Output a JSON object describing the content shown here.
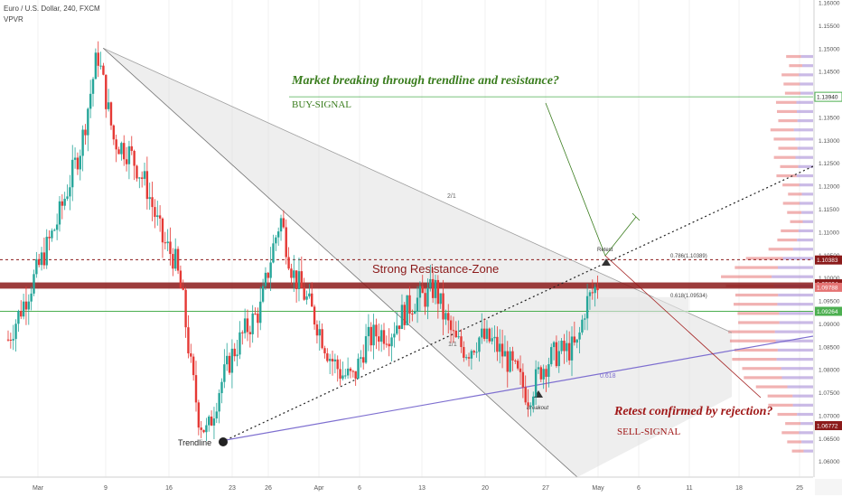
{
  "header": {
    "symbol_line": "Euro / U.S. Dollar, 240, FXCM",
    "indicator": "VPVR"
  },
  "annotations": {
    "buy_title": "Market breaking through trendline and resistance?",
    "buy_signal": "BUY-SIGNAL",
    "sell_title": "Retest confirmed by rejection?",
    "sell_signal": "SELL-SIGNAL",
    "resistance_zone": "Strong Resistance-Zone",
    "trendline": "Trendline",
    "breakout": "Breakout",
    "retest": "Retest",
    "fan_2_1": "2/1",
    "fan_1_1": "1/1",
    "fib_618": "0.618",
    "fib_786": "0.786(1.10389)",
    "fib_618_price": "0.618(1.09534)"
  },
  "colors": {
    "bull": "#26a69a",
    "bear": "#e53935",
    "resistance": "#8b1a1a",
    "green_line": "#4caf50",
    "buy_text": "#3a7d1e",
    "sell_text": "#a01818",
    "blue_line": "#7e6fd0",
    "fan_fill": "#d9d9d9"
  },
  "chart_data": {
    "type": "candlestick",
    "symbol": "Euro / U.S. Dollar",
    "timeframe": "240",
    "source": "FXCM",
    "y_range": [
      1.0565,
      1.1605
    ],
    "y_ticks": [
      1.06,
      1.065,
      1.07,
      1.075,
      1.08,
      1.085,
      1.09,
      1.095,
      1.1,
      1.105,
      1.11,
      1.115,
      1.12,
      1.125,
      1.13,
      1.135,
      1.14,
      1.145,
      1.15,
      1.155,
      1.16
    ],
    "x_ticks": [
      "Mar",
      "9",
      "16",
      "23",
      "26",
      "Apr",
      "6",
      "13",
      "20",
      "27",
      "May",
      "6",
      "11",
      "18",
      "25"
    ],
    "price_tags": [
      {
        "label": "1.13940",
        "value": 1.1394,
        "style": "outline"
      },
      {
        "label": "1.10383",
        "value": 1.10383,
        "style": "solid"
      },
      {
        "label": "1.09864",
        "value": 1.09864,
        "style": "solid"
      },
      {
        "label": "1.09788",
        "value": 1.09788,
        "style": "light"
      },
      {
        "label": "1.09264",
        "value": 1.09264,
        "style": "solid"
      },
      {
        "label": "1.06772",
        "value": 1.06772,
        "style": "solid"
      }
    ],
    "levels": {
      "resistance_upper": 1.09864,
      "resistance_lower": 1.09788,
      "fib_786": 1.10389,
      "fib_618": 1.09534,
      "support_green": 1.09264,
      "buy_line": 1.1394
    },
    "key_points": [
      {
        "x": 0.01,
        "close": 1.0865
      },
      {
        "x": 0.04,
        "close": 1.099
      },
      {
        "x": 0.07,
        "close": 1.112
      },
      {
        "x": 0.1,
        "close": 1.129
      },
      {
        "x": 0.12,
        "close": 1.149
      },
      {
        "x": 0.14,
        "close": 1.13
      },
      {
        "x": 0.16,
        "close": 1.127
      },
      {
        "x": 0.18,
        "close": 1.12
      },
      {
        "x": 0.2,
        "close": 1.108
      },
      {
        "x": 0.215,
        "close": 1.104
      },
      {
        "x": 0.225,
        "close": 1.095
      },
      {
        "x": 0.235,
        "close": 1.08
      },
      {
        "x": 0.245,
        "close": 1.069
      },
      {
        "x": 0.255,
        "close": 1.066
      },
      {
        "x": 0.27,
        "close": 1.076
      },
      {
        "x": 0.285,
        "close": 1.083
      },
      {
        "x": 0.3,
        "close": 1.088
      },
      {
        "x": 0.32,
        "close": 1.093
      },
      {
        "x": 0.335,
        "close": 1.106
      },
      {
        "x": 0.345,
        "close": 1.113
      },
      {
        "x": 0.36,
        "close": 1.101
      },
      {
        "x": 0.375,
        "close": 1.096
      },
      {
        "x": 0.39,
        "close": 1.09
      },
      {
        "x": 0.405,
        "close": 1.083
      },
      {
        "x": 0.42,
        "close": 1.079
      },
      {
        "x": 0.435,
        "close": 1.078
      },
      {
        "x": 0.45,
        "close": 1.086
      },
      {
        "x": 0.465,
        "close": 1.088
      },
      {
        "x": 0.48,
        "close": 1.088
      },
      {
        "x": 0.495,
        "close": 1.092
      },
      {
        "x": 0.51,
        "close": 1.095
      },
      {
        "x": 0.525,
        "close": 1.096
      },
      {
        "x": 0.535,
        "close": 1.098
      },
      {
        "x": 0.545,
        "close": 1.092
      },
      {
        "x": 0.56,
        "close": 1.086
      },
      {
        "x": 0.575,
        "close": 1.084
      },
      {
        "x": 0.59,
        "close": 1.087
      },
      {
        "x": 0.605,
        "close": 1.086
      },
      {
        "x": 0.62,
        "close": 1.083
      },
      {
        "x": 0.635,
        "close": 1.079
      },
      {
        "x": 0.65,
        "close": 1.074
      },
      {
        "x": 0.665,
        "close": 1.08
      },
      {
        "x": 0.68,
        "close": 1.083
      },
      {
        "x": 0.695,
        "close": 1.084
      },
      {
        "x": 0.71,
        "close": 1.085
      },
      {
        "x": 0.72,
        "close": 1.094
      },
      {
        "x": 0.735,
        "close": 1.0985
      }
    ]
  }
}
